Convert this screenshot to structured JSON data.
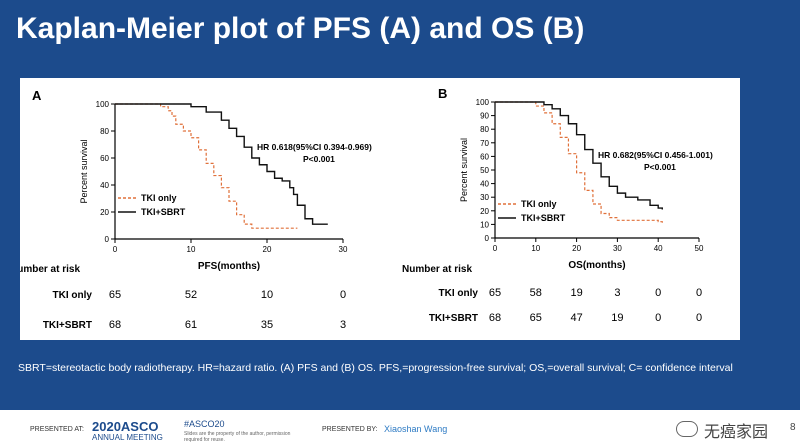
{
  "slide": {
    "title": "Kaplan-Meier plot of PFS (A) and OS (B)",
    "footnote": "SBRT=stereotactic body radiotherapy. HR=hazard ratio. (A) PFS and (B) OS. PFS,=progression-free survival; OS,=overall survival; C= confidence interval",
    "page_number": "8"
  },
  "colors": {
    "background": "#1c4b8c",
    "tki_only": "#e0703a",
    "tki_sbrt": "#111111"
  },
  "footer": {
    "presented_at": "PRESENTED AT:",
    "conference": "2020ASCO",
    "conference_sub": "ANNUAL MEETING",
    "hashtag": "#ASCO20",
    "hashtag_note": "Slides are the property of the author, permission required for reuse.",
    "presented_by": "PRESENTED BY:",
    "presenter": "Xiaoshan Wang",
    "watermark": "无癌家园"
  },
  "chart_data": [
    {
      "type": "line",
      "panel_label": "A",
      "xlabel": "PFS(months)",
      "ylabel": "Percent survival",
      "xlim": [
        0,
        30
      ],
      "ylim": [
        0,
        100
      ],
      "xticks": [
        0,
        10,
        20,
        30
      ],
      "yticks": [
        0,
        20,
        40,
        60,
        80,
        100
      ],
      "annotation": [
        "HR 0.618(95%CI 0.394-0.969)",
        "P<0.001"
      ],
      "series": [
        {
          "name": "TKI only",
          "style": "dashed",
          "x": [
            0,
            5,
            6,
            7,
            7.5,
            8,
            9,
            10,
            11,
            12,
            13,
            14,
            15,
            16,
            17,
            18,
            20,
            24
          ],
          "y": [
            100,
            100,
            98,
            95,
            91,
            85,
            80,
            75,
            66,
            56,
            47,
            38,
            28,
            18,
            11,
            8,
            8,
            8
          ]
        },
        {
          "name": "TKI+SBRT",
          "style": "solid",
          "x": [
            0,
            7,
            10,
            12,
            14,
            15,
            16,
            17,
            18,
            19,
            20,
            21,
            22,
            23,
            23.5,
            24,
            25,
            26,
            28
          ],
          "y": [
            100,
            100,
            98,
            94,
            88,
            82,
            76,
            68,
            60,
            55,
            50,
            45,
            43,
            38,
            33,
            25,
            15,
            11,
            11
          ]
        }
      ],
      "risk_table": {
        "header": "Number at risk",
        "rows": [
          {
            "label": "TKI only",
            "values": [
              "65",
              "52",
              "10",
              "0"
            ]
          },
          {
            "label": "TKI+SBRT",
            "values": [
              "68",
              "61",
              "35",
              "3"
            ]
          }
        ]
      }
    },
    {
      "type": "line",
      "panel_label": "B",
      "xlabel": "OS(months)",
      "ylabel": "Percent survival",
      "xlim": [
        0,
        50
      ],
      "ylim": [
        0,
        100
      ],
      "xticks": [
        0,
        10,
        20,
        30,
        40,
        50
      ],
      "yticks": [
        0,
        10,
        20,
        30,
        40,
        50,
        60,
        70,
        80,
        90,
        100
      ],
      "annotation": [
        "HR 0.682(95%CI 0.456-1.001)",
        "P<0.001"
      ],
      "series": [
        {
          "name": "TKI only",
          "style": "dashed",
          "x": [
            0,
            8,
            10,
            12,
            14,
            16,
            18,
            20,
            22,
            24,
            26,
            28,
            30,
            40,
            41
          ],
          "y": [
            100,
            100,
            97,
            92,
            84,
            74,
            62,
            48,
            35,
            25,
            18,
            15,
            13,
            12,
            10
          ]
        },
        {
          "name": "TKI+SBRT",
          "style": "solid",
          "x": [
            0,
            10,
            12,
            14,
            16,
            18,
            20,
            22,
            24,
            26,
            28,
            30,
            32,
            35,
            38,
            40,
            41
          ],
          "y": [
            100,
            100,
            98,
            95,
            90,
            84,
            76,
            65,
            55,
            45,
            38,
            33,
            30,
            28,
            24,
            22,
            21
          ]
        }
      ],
      "risk_table": {
        "header": "Number at risk",
        "rows": [
          {
            "label": "TKI only",
            "values": [
              "65",
              "58",
              "19",
              "3",
              "0",
              "0"
            ]
          },
          {
            "label": "TKI+SBRT",
            "values": [
              "68",
              "65",
              "47",
              "19",
              "0",
              "0"
            ]
          }
        ]
      }
    }
  ]
}
